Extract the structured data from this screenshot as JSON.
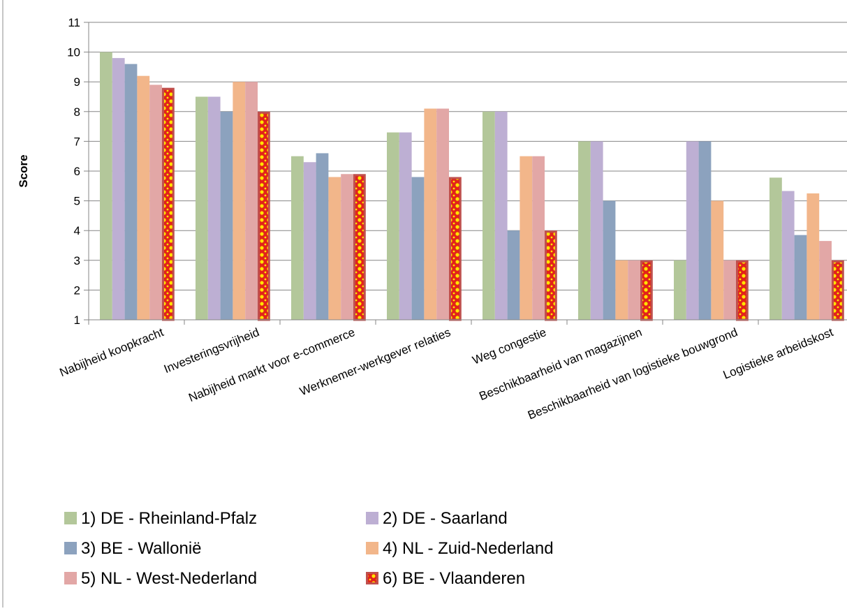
{
  "chart_data": {
    "type": "bar",
    "title": "",
    "ylabel": "Score",
    "xlabel": "",
    "ylim": [
      1,
      11
    ],
    "yticks": [
      1,
      2,
      3,
      4,
      5,
      6,
      7,
      8,
      9,
      10,
      11
    ],
    "grid": true,
    "legend_position": "bottom",
    "categories": [
      "Nabijheid koopkracht",
      "Investeringsvrijheid",
      "Nabijheid markt voor e-commerce",
      "Werknemer-werkgever relaties",
      "Weg congestie",
      "Beschikbaarheid van magazijnen",
      "Beschikbaarheid van logistieke bouwgrond",
      "Logistieke arbeidskost"
    ],
    "series": [
      {
        "name": "1) DE - Rheinland-Pfalz",
        "color": "#B3C79A",
        "values": [
          10,
          8.5,
          6.5,
          7.3,
          8,
          7,
          3,
          5.78
        ]
      },
      {
        "name": "2) DE - Saarland",
        "color": "#BDAFD3",
        "values": [
          9.8,
          8.5,
          6.3,
          7.3,
          8,
          7,
          7,
          5.33
        ]
      },
      {
        "name": "3) BE - Wallonië",
        "color": "#8CA2BE",
        "values": [
          9.6,
          8,
          6.6,
          5.8,
          4,
          5,
          7,
          3.85
        ]
      },
      {
        "name": "4) NL - Zuid-Nederland",
        "color": "#F2B68A",
        "values": [
          9.2,
          9,
          5.8,
          8.1,
          6.5,
          3,
          5,
          5.25
        ]
      },
      {
        "name": "5) NL - West-Nederland",
        "color": "#E2A7A6",
        "values": [
          8.9,
          9,
          5.9,
          8.1,
          6.5,
          3,
          3,
          3.65
        ]
      },
      {
        "name": "6) BE - Vlaanderen",
        "color": "#E2231A",
        "pattern": "yellow-dots",
        "values": [
          8.8,
          8,
          5.9,
          5.8,
          4,
          3,
          3,
          3
        ]
      }
    ]
  }
}
